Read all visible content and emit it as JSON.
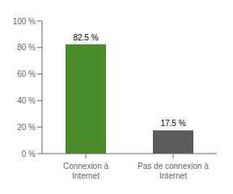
{
  "chart_data": {
    "type": "bar",
    "categories": [
      "Connexion à\nInternet",
      "Pas de connexion à\nInternet"
    ],
    "values": [
      82.5,
      17.5
    ],
    "colors": [
      "#4a8c2a",
      "#5c5c5c"
    ],
    "value_labels": [
      "82.5 %",
      "17.5 %"
    ],
    "data_labels": true,
    "ylim": [
      0,
      100
    ],
    "yticks": [
      {
        "value": 0,
        "label": "0 %"
      },
      {
        "value": 20,
        "label": "20 %"
      },
      {
        "value": 40,
        "label": "40 %"
      },
      {
        "value": 60,
        "label": "60 %"
      },
      {
        "value": 80,
        "label": "80 %"
      },
      {
        "value": 100,
        "label": "100 %"
      }
    ],
    "grid": false
  }
}
